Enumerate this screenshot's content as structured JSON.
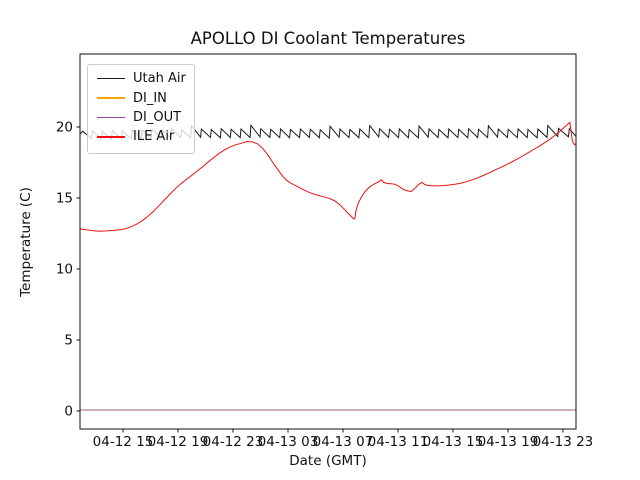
{
  "chart_data": {
    "type": "line",
    "title": "APOLLO DI Coolant Temperatures",
    "xlabel": "Date (GMT)",
    "ylabel": "Temperature (C)",
    "xlim": [
      -0.13,
      35.95
    ],
    "ylim": [
      -1.27,
      25.14
    ],
    "grid": false,
    "legend_position": "upper left",
    "x_ticks": [
      {
        "t": 3,
        "label": "04-12 15"
      },
      {
        "t": 7,
        "label": "04-12 19"
      },
      {
        "t": 11,
        "label": "04-12 23"
      },
      {
        "t": 15,
        "label": "04-13 03"
      },
      {
        "t": 19,
        "label": "04-13 07"
      },
      {
        "t": 23,
        "label": "04-13 11"
      },
      {
        "t": 27,
        "label": "04-13 15"
      },
      {
        "t": 31,
        "label": "04-13 19"
      },
      {
        "t": 35,
        "label": "04-13 23"
      }
    ],
    "y_ticks": [
      0,
      5,
      10,
      15,
      20
    ],
    "x_unit_note": "hours after 04-12 12:00 GMT",
    "series": [
      {
        "name": "Utah Air",
        "color": "#1a1a1a",
        "opacity": 1,
        "points": [
          [
            -0.13,
            19.5
          ],
          [
            0.06,
            19.7
          ],
          [
            0.72,
            19.18
          ],
          [
            0.78,
            19.72
          ],
          [
            1.44,
            19.16
          ],
          [
            1.5,
            19.68
          ],
          [
            2.16,
            19.15
          ],
          [
            2.22,
            19.74
          ],
          [
            2.88,
            19.17
          ],
          [
            2.94,
            19.72
          ],
          [
            3.6,
            19.18
          ],
          [
            3.66,
            19.78
          ],
          [
            4.32,
            19.2
          ],
          [
            4.38,
            19.8
          ],
          [
            5.04,
            19.22
          ],
          [
            5.1,
            19.84
          ],
          [
            5.76,
            19.24
          ],
          [
            5.82,
            19.8
          ],
          [
            6.48,
            19.22
          ],
          [
            6.54,
            19.86
          ],
          [
            7.2,
            19.25
          ],
          [
            7.26,
            19.82
          ],
          [
            7.92,
            19.24
          ],
          [
            7.98,
            20.08
          ],
          [
            8.64,
            19.28
          ],
          [
            8.7,
            19.86
          ],
          [
            9.36,
            19.26
          ],
          [
            9.42,
            19.82
          ],
          [
            10.08,
            19.24
          ],
          [
            10.14,
            19.88
          ],
          [
            10.8,
            19.26
          ],
          [
            10.86,
            19.84
          ],
          [
            11.52,
            19.25
          ],
          [
            11.58,
            19.86
          ],
          [
            12.24,
            19.26
          ],
          [
            12.3,
            20.12
          ],
          [
            12.96,
            19.3
          ],
          [
            13.02,
            19.88
          ],
          [
            13.68,
            19.26
          ],
          [
            13.74,
            19.84
          ],
          [
            14.4,
            19.25
          ],
          [
            14.46,
            19.86
          ],
          [
            15.12,
            19.24
          ],
          [
            15.18,
            19.82
          ],
          [
            15.84,
            19.25
          ],
          [
            15.9,
            19.86
          ],
          [
            16.56,
            19.26
          ],
          [
            16.62,
            19.84
          ],
          [
            17.28,
            19.24
          ],
          [
            17.34,
            19.8
          ],
          [
            18.0,
            19.22
          ],
          [
            18.06,
            20.05
          ],
          [
            18.72,
            19.28
          ],
          [
            18.78,
            19.85
          ],
          [
            19.44,
            19.25
          ],
          [
            19.5,
            19.82
          ],
          [
            20.16,
            19.24
          ],
          [
            20.22,
            19.86
          ],
          [
            20.88,
            19.25
          ],
          [
            20.94,
            20.1
          ],
          [
            21.6,
            19.3
          ],
          [
            21.66,
            19.88
          ],
          [
            22.32,
            19.26
          ],
          [
            22.38,
            19.84
          ],
          [
            23.04,
            19.25
          ],
          [
            23.1,
            19.86
          ],
          [
            23.76,
            19.24
          ],
          [
            23.82,
            19.82
          ],
          [
            24.48,
            19.23
          ],
          [
            24.54,
            20.06
          ],
          [
            25.2,
            19.28
          ],
          [
            25.26,
            19.86
          ],
          [
            25.92,
            19.25
          ],
          [
            25.98,
            19.83
          ],
          [
            26.64,
            19.24
          ],
          [
            26.7,
            19.86
          ],
          [
            27.36,
            19.25
          ],
          [
            27.42,
            19.84
          ],
          [
            28.08,
            19.24
          ],
          [
            28.14,
            19.87
          ],
          [
            28.8,
            19.26
          ],
          [
            28.86,
            19.84
          ],
          [
            29.52,
            19.25
          ],
          [
            29.58,
            20.08
          ],
          [
            30.24,
            19.29
          ],
          [
            30.3,
            19.86
          ],
          [
            30.96,
            19.26
          ],
          [
            31.02,
            19.84
          ],
          [
            31.68,
            19.25
          ],
          [
            31.74,
            19.86
          ],
          [
            32.4,
            19.25
          ],
          [
            32.46,
            19.83
          ],
          [
            33.12,
            19.24
          ],
          [
            33.18,
            19.86
          ],
          [
            33.84,
            19.26
          ],
          [
            33.9,
            20.1
          ],
          [
            34.62,
            19.32
          ],
          [
            34.68,
            19.9
          ],
          [
            35.4,
            19.3
          ],
          [
            35.46,
            19.88
          ],
          [
            35.93,
            19.35
          ]
        ]
      },
      {
        "name": "DI_IN",
        "color": "#ffa500",
        "opacity": 1,
        "points": [
          [
            -0.13,
            0.07
          ],
          [
            35.93,
            0.07
          ]
        ]
      },
      {
        "name": "DI_OUT",
        "color": "#8e4a97",
        "opacity": 0.85,
        "points": [
          [
            -0.13,
            0.07
          ],
          [
            35.93,
            0.07
          ]
        ]
      },
      {
        "name": "ILE Air",
        "color": "#f01010",
        "opacity": 1,
        "points": [
          [
            -0.13,
            12.82
          ],
          [
            0.3,
            12.76
          ],
          [
            0.8,
            12.7
          ],
          [
            1.3,
            12.66
          ],
          [
            1.8,
            12.68
          ],
          [
            2.3,
            12.72
          ],
          [
            2.8,
            12.76
          ],
          [
            3.2,
            12.84
          ],
          [
            3.6,
            12.98
          ],
          [
            4.0,
            13.16
          ],
          [
            4.4,
            13.4
          ],
          [
            4.8,
            13.7
          ],
          [
            5.2,
            14.05
          ],
          [
            5.6,
            14.45
          ],
          [
            6.0,
            14.85
          ],
          [
            6.4,
            15.25
          ],
          [
            6.8,
            15.65
          ],
          [
            7.2,
            16.0
          ],
          [
            7.6,
            16.3
          ],
          [
            8.0,
            16.6
          ],
          [
            8.4,
            16.9
          ],
          [
            8.8,
            17.2
          ],
          [
            9.2,
            17.55
          ],
          [
            9.6,
            17.85
          ],
          [
            10.0,
            18.15
          ],
          [
            10.4,
            18.4
          ],
          [
            10.8,
            18.6
          ],
          [
            11.2,
            18.75
          ],
          [
            11.6,
            18.85
          ],
          [
            12.0,
            18.98
          ],
          [
            12.4,
            18.95
          ],
          [
            12.8,
            18.8
          ],
          [
            13.1,
            18.55
          ],
          [
            13.4,
            18.2
          ],
          [
            13.7,
            17.8
          ],
          [
            14.0,
            17.35
          ],
          [
            14.3,
            16.95
          ],
          [
            14.6,
            16.55
          ],
          [
            14.9,
            16.25
          ],
          [
            15.2,
            16.05
          ],
          [
            15.6,
            15.85
          ],
          [
            16.0,
            15.65
          ],
          [
            16.4,
            15.45
          ],
          [
            16.8,
            15.3
          ],
          [
            17.2,
            15.18
          ],
          [
            17.6,
            15.08
          ],
          [
            18.0,
            14.98
          ],
          [
            18.4,
            14.8
          ],
          [
            18.8,
            14.5
          ],
          [
            19.1,
            14.2
          ],
          [
            19.4,
            13.9
          ],
          [
            19.6,
            13.7
          ],
          [
            19.75,
            13.55
          ],
          [
            19.85,
            13.52
          ],
          [
            19.95,
            14.1
          ],
          [
            20.1,
            14.6
          ],
          [
            20.3,
            15.0
          ],
          [
            20.6,
            15.45
          ],
          [
            20.9,
            15.75
          ],
          [
            21.2,
            15.95
          ],
          [
            21.5,
            16.1
          ],
          [
            21.8,
            16.28
          ],
          [
            21.95,
            16.1
          ],
          [
            22.2,
            16.02
          ],
          [
            22.5,
            16.0
          ],
          [
            22.8,
            15.96
          ],
          [
            23.1,
            15.8
          ],
          [
            23.4,
            15.6
          ],
          [
            23.7,
            15.5
          ],
          [
            23.95,
            15.45
          ],
          [
            24.2,
            15.65
          ],
          [
            24.5,
            15.95
          ],
          [
            24.75,
            16.1
          ],
          [
            24.95,
            15.95
          ],
          [
            25.2,
            15.88
          ],
          [
            25.6,
            15.85
          ],
          [
            26.0,
            15.86
          ],
          [
            26.4,
            15.88
          ],
          [
            26.8,
            15.92
          ],
          [
            27.2,
            15.98
          ],
          [
            27.6,
            16.05
          ],
          [
            28.0,
            16.15
          ],
          [
            28.4,
            16.28
          ],
          [
            28.8,
            16.42
          ],
          [
            29.2,
            16.58
          ],
          [
            29.6,
            16.75
          ],
          [
            30.0,
            16.95
          ],
          [
            30.4,
            17.12
          ],
          [
            30.8,
            17.3
          ],
          [
            31.2,
            17.5
          ],
          [
            31.6,
            17.7
          ],
          [
            32.0,
            17.92
          ],
          [
            32.4,
            18.15
          ],
          [
            32.8,
            18.38
          ],
          [
            33.2,
            18.6
          ],
          [
            33.6,
            18.85
          ],
          [
            34.0,
            19.1
          ],
          [
            34.4,
            19.4
          ],
          [
            34.8,
            19.72
          ],
          [
            35.1,
            19.98
          ],
          [
            35.35,
            20.2
          ],
          [
            35.5,
            20.32
          ],
          [
            35.58,
            19.8
          ],
          [
            35.65,
            19.2
          ],
          [
            35.75,
            18.85
          ],
          [
            35.85,
            18.75
          ],
          [
            35.93,
            18.82
          ]
        ]
      }
    ]
  }
}
